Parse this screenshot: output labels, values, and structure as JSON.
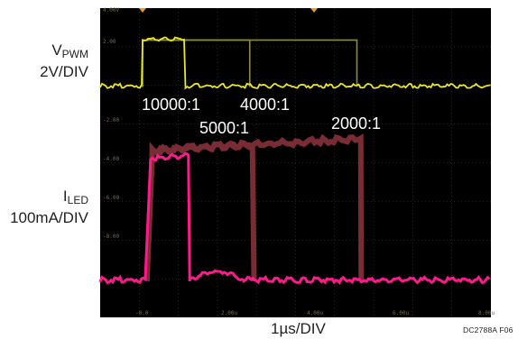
{
  "chart_data": {
    "type": "line",
    "title": "",
    "xlabel": "1µs/DIV",
    "time_unit": "µs",
    "xlim": [
      -0.5,
      8.6
    ],
    "x_tick_labels": [
      {
        "x": 0,
        "label": "-0.0"
      },
      {
        "x": 2,
        "label": "2.00u"
      },
      {
        "x": 4,
        "label": "4.00u"
      },
      {
        "x": 6,
        "label": "6.00u"
      },
      {
        "x": 8,
        "label": "8.00u"
      }
    ],
    "grid": true,
    "y_tick_labels": [
      "4.00V",
      "2.00",
      "-2.00",
      "-4.00",
      "-6.00",
      "-8.00"
    ],
    "channels": [
      {
        "label": "V",
        "subscript": "PWM",
        "scale": "2V/DIV",
        "color": "#e8e627",
        "role": "voltage"
      },
      {
        "label": "I",
        "subscript": "LED",
        "scale": "100mA/DIV",
        "color": "#ff1a8c",
        "role": "current"
      }
    ],
    "series": [
      {
        "channel": "V",
        "trace": "highlighted",
        "color": "#e8e627",
        "pulses": [
          {
            "start": 0,
            "end": 1
          }
        ],
        "low": -0.1,
        "high": 2.0
      },
      {
        "channel": "V",
        "trace": "persistence",
        "color": "#8e8a3c",
        "pulses": [
          {
            "start": 0,
            "end": 2.5
          },
          {
            "start": 0,
            "end": 5
          }
        ],
        "low": -0.1,
        "high": 2.0
      },
      {
        "channel": "I",
        "trace": "highlighted",
        "color": "#ff1a8c",
        "pulses": [
          {
            "start": 0.1,
            "end": 1.1
          }
        ],
        "low_div": -4.4,
        "high_div": -0.7
      },
      {
        "channel": "I",
        "trace": "persistence",
        "color": "#7a2c34",
        "pulses": [
          {
            "start": 0.1,
            "end": 2.6
          },
          {
            "start": 0.1,
            "end": 5.1
          }
        ],
        "low_div": -4.4,
        "high_div": -0.5
      }
    ],
    "annotations": [
      {
        "text": "10000:1",
        "x": 0.9
      },
      {
        "text": "4000:1",
        "x": 3.0
      },
      {
        "text": "5000:1",
        "x": 2.1
      },
      {
        "text": "2000:1",
        "x": 5.2
      }
    ],
    "markers": [
      {
        "x": 0
      },
      {
        "x": 4
      }
    ]
  },
  "labels": {
    "vpwm_main": "V",
    "vpwm_sub": "PWM",
    "vpwm_scale": "2V/DIV",
    "iled_main": "I",
    "iled_sub": "LED",
    "iled_scale": "100mA/DIV",
    "xlabel": "1µs/DIV",
    "fig_id": "DC2788A F06"
  },
  "colors": {
    "screen_bg": "#000000",
    "grid": "#4a3f2a",
    "vpwm": "#e8e627",
    "vpwm_persist": "#8e8a3c",
    "iled": "#ff1a8c",
    "iled_persist": "#7a2c34",
    "marker": "#f09a1e"
  }
}
